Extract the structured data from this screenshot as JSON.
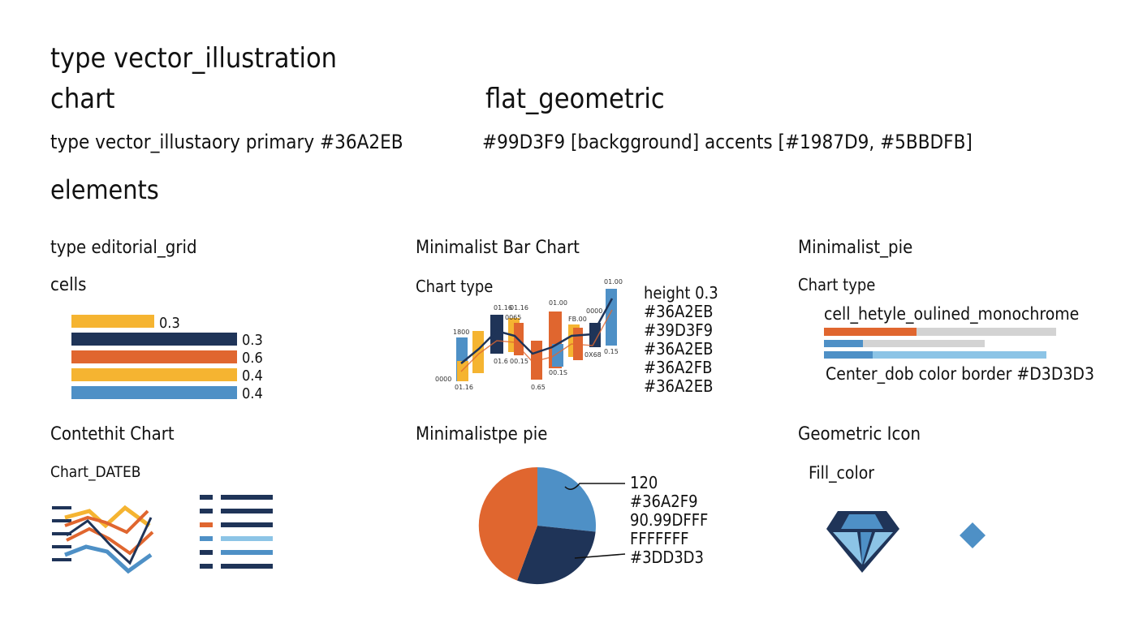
{
  "header": {
    "line1": "type vector_illustration",
    "line2_left": "chart",
    "line2_right": "flat_geometric",
    "spec_left": "type vector_illustaory  primary  #36A2EB",
    "spec_right": "#99D3F9  [backgground] accents [#1987D9, #5BBDFB]",
    "elements": "elements"
  },
  "colors": {
    "yellow": "#F5B431",
    "navy": "#1F3458",
    "orange": "#E0662F",
    "blue": "#4E90C6",
    "lightblue": "#8CC4E6",
    "gray": "#D3D3D3"
  },
  "grid_panel": {
    "title": "type editorial_grid",
    "subtitle": "cells",
    "bars": [
      {
        "label": "0.3",
        "value": 0.3,
        "color": "yellow"
      },
      {
        "label": "0.3",
        "value": 0.3,
        "color": "navy"
      },
      {
        "label": "0.6",
        "value": 0.6,
        "color": "orange"
      },
      {
        "label": "0.4",
        "value": 0.4,
        "color": "yellow"
      },
      {
        "label": "0.4",
        "value": 0.4,
        "color": "blue"
      }
    ]
  },
  "bar_panel": {
    "title": "Minimalist Bar Chart",
    "subtitle": "Chart type",
    "legend": [
      "height 0.3",
      "#36A2EB",
      "#39D3F9",
      "#36A2EB",
      "#36A2FB",
      "#36A2EB"
    ]
  },
  "pie_bars_panel": {
    "title": "Minimalist_pie",
    "subtitle": "Chart type",
    "caption": "cell_hetyle_oulined_monochrome",
    "footer": "Center_dob color border #D3D3D3",
    "rows": [
      {
        "fill": 0.4,
        "fill_color": "orange",
        "track_color": "gray"
      },
      {
        "fill": 0.17,
        "fill_color": "blue",
        "track_color": "gray"
      },
      {
        "fill": 0.22,
        "fill_color": "blue",
        "track_color": "lightblue"
      }
    ]
  },
  "content_panel": {
    "title": "Contethit Chart",
    "subtitle": "Chart_DATEB"
  },
  "pie_panel": {
    "title": "Minimalistpe pie",
    "labels": [
      "120",
      "#36A2F9",
      "90.99DFFF",
      "FFFFFFF",
      "#3DD3D3"
    ],
    "slices": [
      {
        "name": "blue",
        "value": 0.28,
        "color": "blue"
      },
      {
        "name": "navy",
        "value": 0.32,
        "color": "navy"
      },
      {
        "name": "orange",
        "value": 0.4,
        "color": "orange"
      }
    ]
  },
  "icon_panel": {
    "title": "Geometric Icon",
    "subtitle": "Fill_color"
  }
}
